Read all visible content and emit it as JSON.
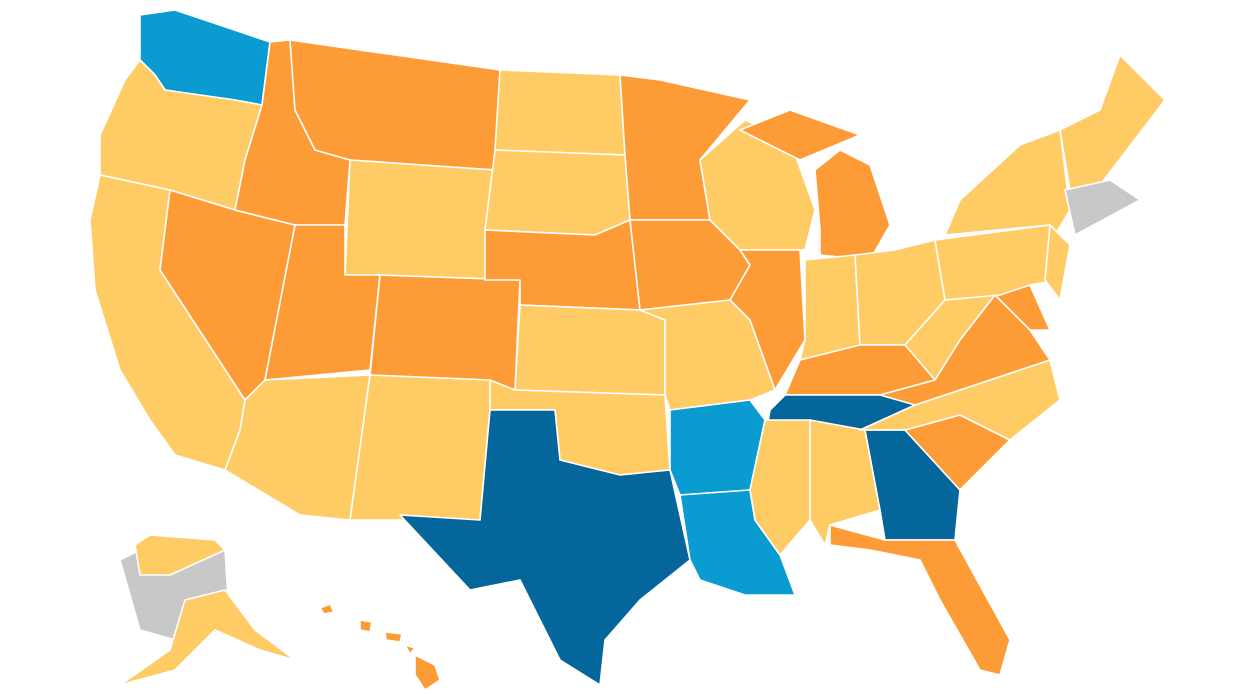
{
  "map": {
    "palette": [
      "#fecb64",
      "#fd9b36",
      "#0a9bd0",
      "#04669a",
      "#c8c8c8"
    ]
  }
}
